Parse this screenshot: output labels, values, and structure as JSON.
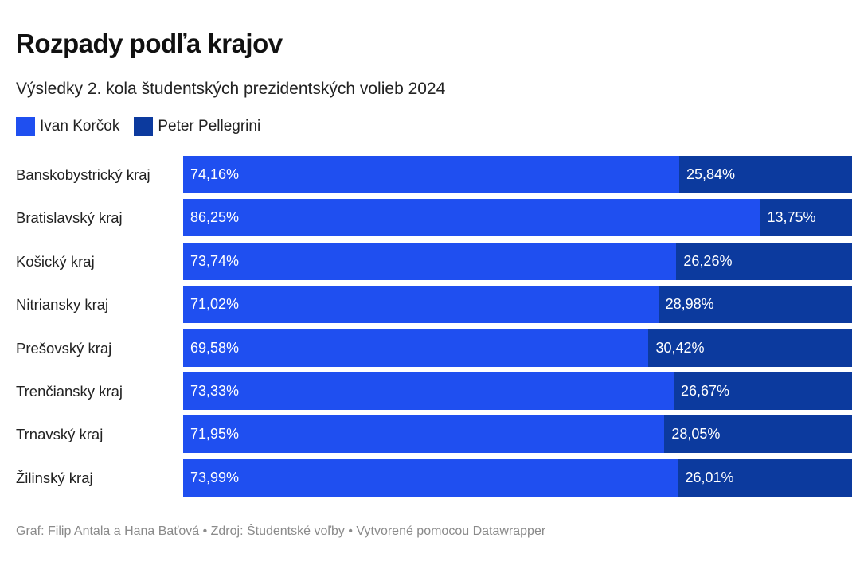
{
  "title": "Rozpady podľa krajov",
  "subtitle": "Výsledky 2. kola študentských prezidentských volieb 2024",
  "footer": "Graf: Filip Antala a Hana Baťová • Zdroj: Študentské voľby • Vytvorené pomocou Datawrapper",
  "chart_data": {
    "type": "bar",
    "stacked": true,
    "orientation": "horizontal",
    "xlim": [
      0,
      100
    ],
    "legend_position": "top-left",
    "categories": [
      "Banskobystrický kraj",
      "Bratislavský kraj",
      "Košický kraj",
      "Nitriansky kraj",
      "Prešovský kraj",
      "Trenčiansky kraj",
      "Trnavský kraj",
      "Žilinský kraj"
    ],
    "series": [
      {
        "name": "Ivan Korčok",
        "color": "#1f4ff0",
        "values": [
          74.16,
          86.25,
          73.74,
          71.02,
          69.58,
          73.33,
          71.95,
          73.99
        ],
        "labels": [
          "74,16%",
          "86,25%",
          "73,74%",
          "71,02%",
          "69,58%",
          "73,33%",
          "71,95%",
          "73,99%"
        ]
      },
      {
        "name": "Peter Pellegrini",
        "color": "#0c3a9e",
        "values": [
          25.84,
          13.75,
          26.26,
          28.98,
          30.42,
          26.67,
          28.05,
          26.01
        ],
        "labels": [
          "25,84%",
          "13,75%",
          "26,26%",
          "28,98%",
          "30,42%",
          "26,67%",
          "28,05%",
          "26,01%"
        ]
      }
    ]
  }
}
